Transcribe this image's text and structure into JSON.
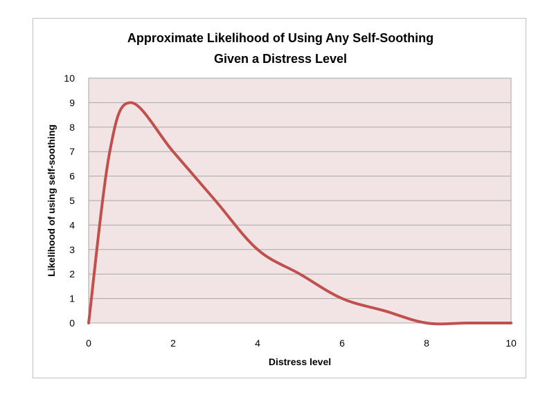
{
  "chart_data": {
    "type": "line",
    "title": "Approximate Likelihood of Using Any Self-Soothing Given a Distress Level",
    "title_lines": [
      "Approximate Likelihood of Using Any Self-Soothing",
      "Given a Distress Level"
    ],
    "xlabel": "Distress level",
    "ylabel": "Likelihood of using self-soothing",
    "xlim": [
      0,
      10
    ],
    "ylim": [
      0,
      10
    ],
    "x_ticks": [
      0,
      2,
      4,
      6,
      8,
      10
    ],
    "y_ticks": [
      0,
      1,
      2,
      3,
      4,
      5,
      6,
      7,
      8,
      9,
      10
    ],
    "grid": true,
    "legend": null,
    "smooth": true,
    "series": [
      {
        "name": "Likelihood",
        "color": "#c0504d",
        "x": [
          0,
          0.5,
          1,
          2,
          3,
          4,
          5,
          6,
          7,
          8,
          9,
          10
        ],
        "values": [
          0,
          7,
          9,
          7,
          5,
          3,
          2,
          1,
          0.5,
          0,
          0,
          0
        ]
      }
    ],
    "plot_background": "#f2e4e4",
    "grid_color": "#a6a6a6"
  }
}
